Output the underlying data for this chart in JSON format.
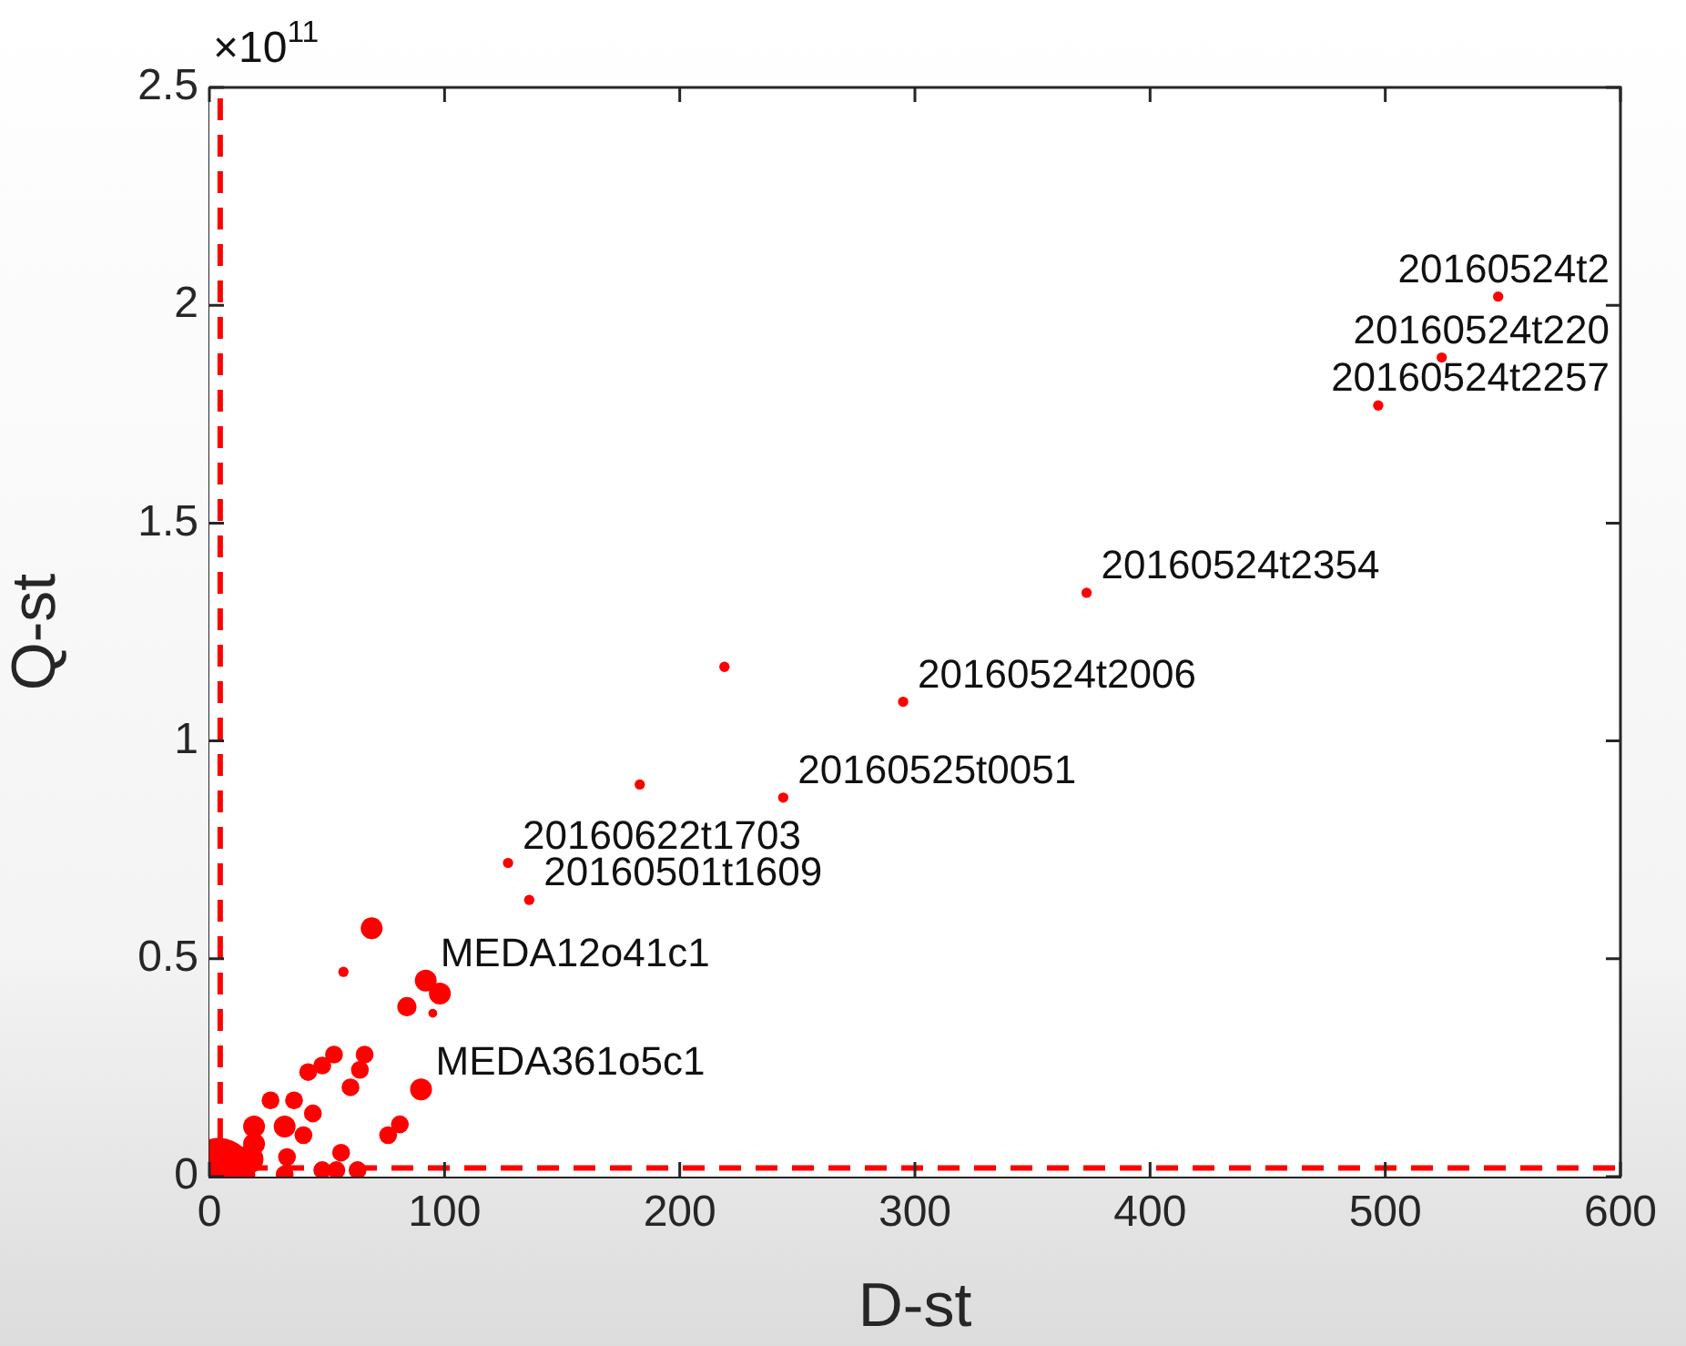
{
  "chart_data": {
    "type": "bubble",
    "xlabel": "D-st",
    "ylabel": "Q-st",
    "color": "#ff0000",
    "marker": "circle",
    "xlim": [
      0,
      600
    ],
    "xticks": [
      0,
      100,
      200,
      300,
      400,
      500,
      600
    ],
    "ylim": [
      0,
      2.5
    ],
    "yticks": [
      0,
      0.5,
      1,
      1.5,
      2,
      2.5
    ],
    "x": [
      548,
      524,
      497,
      373,
      295,
      219,
      244,
      183,
      127,
      136,
      92,
      98,
      69,
      57,
      84,
      95,
      90,
      53,
      48,
      42,
      66,
      64,
      60,
      26,
      36,
      44,
      40,
      81,
      76,
      19,
      32,
      33,
      32,
      56,
      48,
      63,
      54,
      19,
      4,
      17
    ],
    "values": [
      2.02,
      1.88,
      1.77,
      1.34,
      1.09,
      1.17,
      0.87,
      0.9,
      0.72,
      0.635,
      0.45,
      0.42,
      0.57,
      0.47,
      0.39,
      0.375,
      0.2,
      0.28,
      0.255,
      0.24,
      0.28,
      0.245,
      0.205,
      0.175,
      0.175,
      0.145,
      0.095,
      0.12,
      0.095,
      0.115,
      0.115,
      0.045,
      0.005,
      0.055,
      0.015,
      0.015,
      0.015,
      0.075,
      0.005,
      0.04
    ],
    "sizes": [
      0.02,
      0.02,
      0.02,
      0.02,
      0.02,
      0.02,
      0.02,
      0.02,
      0.02,
      0.02,
      0.09,
      0.09,
      0.09,
      0.02,
      0.07,
      0.015,
      0.09,
      0.06,
      0.06,
      0.06,
      0.06,
      0.06,
      0.06,
      0.06,
      0.06,
      0.06,
      0.06,
      0.06,
      0.06,
      0.09,
      0.09,
      0.06,
      0.06,
      0.06,
      0.06,
      0.06,
      0.06,
      0.09,
      1,
      0.15
    ],
    "ref_lines": [
      {
        "axis": "x",
        "value": 4.6,
        "color": "#ff0000",
        "line_style": "dashed"
      },
      {
        "axis": "y",
        "value": 0.02,
        "color": "#ff0000",
        "line_style": "dashed"
      }
    ],
    "annotations": [
      "×10$^{11}$",
      {
        "text": "20160524t2",
        "x": 548,
        "y": 2.02
      },
      {
        "text": "20160524t220",
        "x": 524,
        "y": 1.88
      },
      {
        "text": "20160524t2257",
        "x": 497,
        "y": 1.77
      },
      {
        "text": "20160524t2354",
        "x": 373,
        "y": 1.34
      },
      {
        "text": "20160524t2006",
        "x": 295,
        "y": 1.09
      },
      {
        "text": "20160525t0051",
        "x": 244,
        "y": 0.87
      },
      {
        "text": "20160622t1703",
        "x": 127,
        "y": 0.72
      },
      {
        "text": "20160501t1609",
        "x": 136,
        "y": 0.635
      },
      {
        "text": "MEDA12o41c1",
        "x": 92,
        "y": 0.45
      },
      {
        "text": "MEDA361o5c1",
        "x": 90,
        "y": 0.2
      }
    ]
  }
}
